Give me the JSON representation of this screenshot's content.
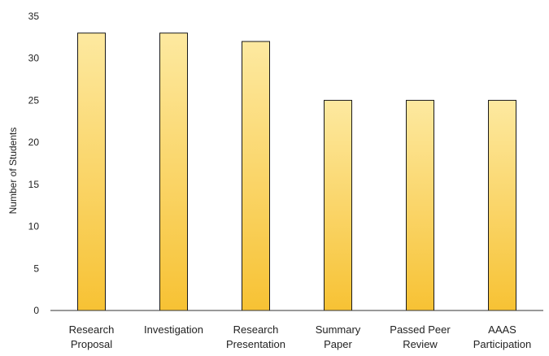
{
  "chart_data": {
    "type": "bar",
    "title": "",
    "xlabel": "",
    "ylabel": "Number of Students",
    "ylim": [
      0,
      35
    ],
    "yticks": [
      0,
      5,
      10,
      15,
      20,
      25,
      30,
      35
    ],
    "grid": false,
    "categories": [
      [
        "Research",
        "Proposal"
      ],
      [
        "Investigation"
      ],
      [
        "Research",
        "Presentation"
      ],
      [
        "Summary",
        "Paper"
      ],
      [
        "Passed Peer",
        "Review"
      ],
      [
        "AAAS",
        "Participation"
      ]
    ],
    "values": [
      33,
      33,
      32,
      25,
      25,
      25
    ],
    "colors": {
      "bar_top": "#fde9a0",
      "bar_bottom": "#f7c234",
      "bar_edge": "#1a1a1a",
      "axis": "#333333"
    }
  }
}
